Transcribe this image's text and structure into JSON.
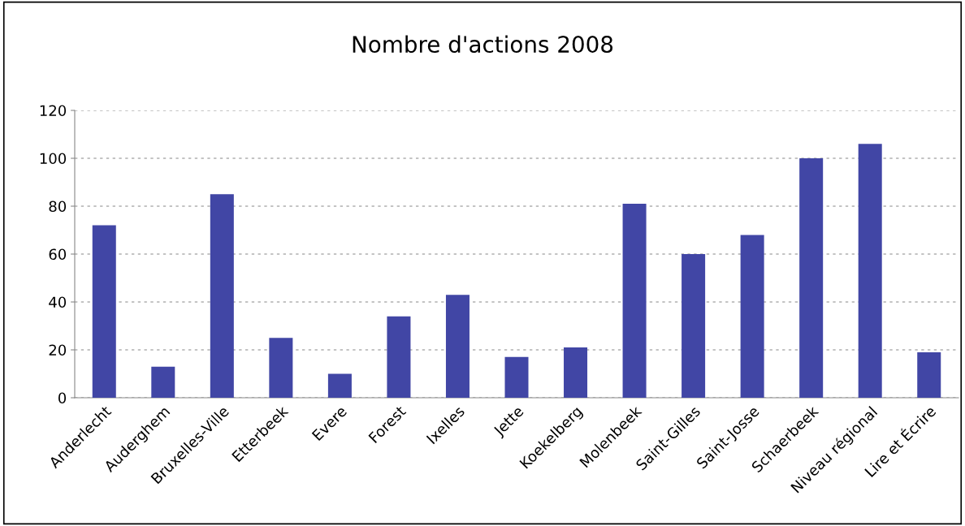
{
  "chart_data": {
    "type": "bar",
    "title": "Nombre d'actions 2008",
    "categories": [
      "Anderlecht",
      "Auderghem",
      "Bruxelles-Ville",
      "Etterbeek",
      "Evere",
      "Forest",
      "Ixelles",
      "Jette",
      "Koekelberg",
      "Molenbeek",
      "Saint-Gilles",
      "Saint-Josse",
      "Schaerbeek",
      "Niveau régional",
      "Lire et Écrire"
    ],
    "values": [
      72,
      13,
      85,
      25,
      10,
      34,
      43,
      17,
      21,
      81,
      60,
      68,
      100,
      106,
      19
    ],
    "color": "#4146a5",
    "ylim": [
      0,
      120
    ],
    "yticks": [
      0,
      20,
      40,
      60,
      80,
      100,
      120
    ],
    "grid": "y"
  }
}
